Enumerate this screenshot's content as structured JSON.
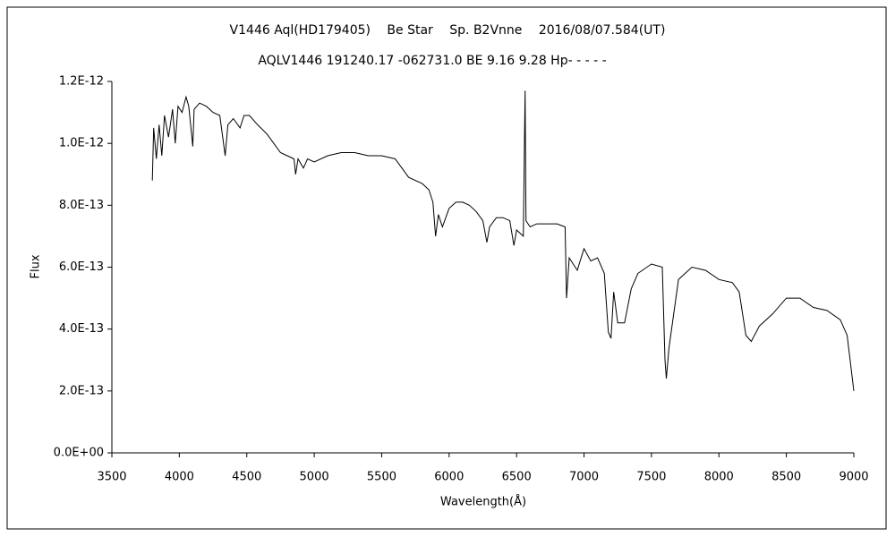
{
  "chart_data": {
    "type": "line",
    "title": "V1446 Aql(HD179405)　 Be Star　 Sp. B2Vnne　 2016/08/07.584(UT)",
    "subtitle": "AQLV1446 191240.17 -062731.0 BE 9.16 9.28 Hp- - - - -",
    "x_label": "Wavelength(Å)",
    "y_label": "Flux",
    "xlim": [
      3500,
      9000
    ],
    "ylim": [
      0,
      1.2e-12
    ],
    "xticks": [
      3500,
      4000,
      4500,
      5000,
      5500,
      6000,
      6500,
      7000,
      7500,
      8000,
      8500,
      9000
    ],
    "yticks": [
      {
        "value": 0,
        "label": "0.0E+00"
      },
      {
        "value": 2e-13,
        "label": "2.0E-13"
      },
      {
        "value": 4e-13,
        "label": "4.0E-13"
      },
      {
        "value": 6e-13,
        "label": "6.0E-13"
      },
      {
        "value": 8e-13,
        "label": "8.0E-13"
      },
      {
        "value": 1e-12,
        "label": "1.0E-12"
      },
      {
        "value": 1.2e-12,
        "label": "1.2E-12"
      }
    ],
    "x": [
      3800,
      3810,
      3830,
      3850,
      3870,
      3890,
      3920,
      3950,
      3970,
      3990,
      4020,
      4050,
      4070,
      4100,
      4110,
      4150,
      4200,
      4250,
      4300,
      4340,
      4360,
      4400,
      4450,
      4480,
      4520,
      4580,
      4650,
      4700,
      4750,
      4800,
      4850,
      4862,
      4880,
      4920,
      4950,
      5000,
      5100,
      5200,
      5300,
      5400,
      5500,
      5600,
      5650,
      5700,
      5800,
      5850,
      5880,
      5900,
      5920,
      5950,
      6000,
      6050,
      6100,
      6150,
      6200,
      6250,
      6280,
      6300,
      6350,
      6400,
      6450,
      6480,
      6500,
      6550,
      6563,
      6570,
      6600,
      6650,
      6700,
      6800,
      6860,
      6870,
      6890,
      6950,
      7000,
      7050,
      7100,
      7150,
      7180,
      7200,
      7220,
      7250,
      7300,
      7350,
      7400,
      7500,
      7580,
      7600,
      7610,
      7630,
      7700,
      7800,
      7900,
      8000,
      8100,
      8150,
      8200,
      8240,
      8300,
      8400,
      8500,
      8600,
      8700,
      8800,
      8900,
      8950,
      9000
    ],
    "series": [
      {
        "color": "#000000",
        "values": [
          8.8e-13,
          1.05e-12,
          9.5e-13,
          1.06e-12,
          9.6e-13,
          1.09e-12,
          1.02e-12,
          1.11e-12,
          1e-12,
          1.12e-12,
          1.1e-12,
          1.15e-12,
          1.12e-12,
          9.9e-13,
          1.11e-12,
          1.13e-12,
          1.12e-12,
          1.1e-12,
          1.09e-12,
          9.6e-13,
          1.06e-12,
          1.08e-12,
          1.05e-12,
          1.09e-12,
          1.09e-12,
          1.06e-12,
          1.03e-12,
          1e-12,
          9.7e-13,
          9.6e-13,
          9.5e-13,
          9e-13,
          9.5e-13,
          9.2e-13,
          9.5e-13,
          9.4e-13,
          9.6e-13,
          9.7e-13,
          9.7e-13,
          9.6e-13,
          9.6e-13,
          9.5e-13,
          9.2e-13,
          8.9e-13,
          8.7e-13,
          8.5e-13,
          8.1e-13,
          7e-13,
          7.7e-13,
          7.3e-13,
          7.9e-13,
          8.1e-13,
          8.1e-13,
          8e-13,
          7.8e-13,
          7.5e-13,
          6.8e-13,
          7.3e-13,
          7.6e-13,
          7.6e-13,
          7.5e-13,
          6.7e-13,
          7.2e-13,
          7e-13,
          1.17e-12,
          7.5e-13,
          7.3e-13,
          7.4e-13,
          7.4e-13,
          7.4e-13,
          7.3e-13,
          5e-13,
          6.3e-13,
          5.9e-13,
          6.6e-13,
          6.2e-13,
          6.3e-13,
          5.8e-13,
          3.9e-13,
          3.7e-13,
          5.2e-13,
          4.2e-13,
          4.2e-13,
          5.3e-13,
          5.8e-13,
          6.1e-13,
          6e-13,
          3e-13,
          2.4e-13,
          3.4e-13,
          5.6e-13,
          6e-13,
          5.9e-13,
          5.6e-13,
          5.5e-13,
          5.2e-13,
          3.8e-13,
          3.6e-13,
          4.1e-13,
          4.5e-13,
          5e-13,
          5e-13,
          4.7e-13,
          4.6e-13,
          4.3e-13,
          3.8e-13,
          2e-13
        ]
      }
    ]
  }
}
